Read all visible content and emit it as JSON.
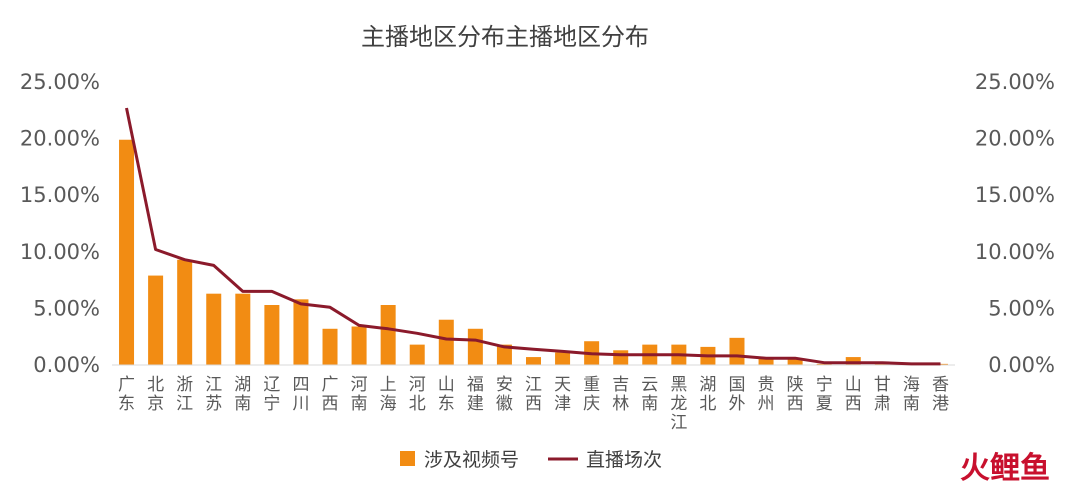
{
  "chart_data": {
    "type": "bar",
    "title": "主播地区分布主播地区分布",
    "categories": [
      "广东",
      "北京",
      "浙江",
      "江苏",
      "湖南",
      "辽宁",
      "四川",
      "广西",
      "河南",
      "上海",
      "河北",
      "山东",
      "福建",
      "安徽",
      "江西",
      "天津",
      "重庆",
      "吉林",
      "云南",
      "黑龙江",
      "湖北",
      "国外",
      "贵州",
      "陕西",
      "宁夏",
      "山西",
      "甘肃",
      "海南",
      "香港"
    ],
    "series": [
      {
        "name": "涉及视频号",
        "type": "bar",
        "color": "#F28C13",
        "values": [
          19.9,
          7.9,
          9.3,
          6.3,
          6.3,
          5.3,
          5.8,
          3.2,
          3.4,
          5.3,
          1.8,
          4.0,
          3.2,
          1.8,
          0.7,
          1.1,
          2.1,
          1.3,
          1.8,
          1.8,
          1.6,
          2.4,
          0.6,
          0.6,
          0.1,
          0.7,
          0.1,
          0.0,
          0.1
        ]
      },
      {
        "name": "直播场次",
        "type": "line",
        "color": "#8B1A2B",
        "values": [
          22.7,
          10.2,
          9.3,
          8.8,
          6.5,
          6.5,
          5.4,
          5.1,
          3.5,
          3.2,
          2.8,
          2.3,
          2.2,
          1.6,
          1.4,
          1.2,
          1.0,
          0.9,
          0.9,
          0.9,
          0.8,
          0.8,
          0.6,
          0.6,
          0.2,
          0.2,
          0.2,
          0.1,
          0.1
        ]
      }
    ],
    "ylim": [
      0,
      25
    ],
    "ytick_labels": [
      "0.00%",
      "5.00%",
      "10.00%",
      "15.00%",
      "20.00%",
      "25.00%"
    ],
    "grid": false,
    "legend_position": "bottom"
  },
  "brand": {
    "text": "火鲤鱼"
  }
}
